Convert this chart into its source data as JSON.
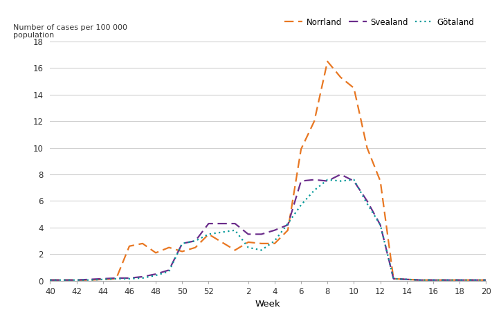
{
  "ylabel": "Number of cases per 100 000\npopulation",
  "xlabel": "Week",
  "ylim": [
    0,
    18
  ],
  "yticks": [
    0,
    2,
    4,
    6,
    8,
    10,
    12,
    14,
    16,
    18
  ],
  "xtick_labels": [
    "40",
    "42",
    "44",
    "46",
    "48",
    "50",
    "52",
    "2",
    "4",
    "6",
    "8",
    "10",
    "12",
    "14",
    "16",
    "18",
    "20"
  ],
  "background_color": "#ffffff",
  "series": [
    {
      "name": "Norrland",
      "color": "#E87722",
      "linestyle": "--",
      "linewidth": 1.6,
      "data": {
        "weeks": [
          40,
          41,
          42,
          43,
          44,
          45,
          46,
          47,
          48,
          49,
          50,
          51,
          52,
          1,
          2,
          3,
          4,
          5,
          6,
          7,
          8,
          9,
          10,
          11,
          12,
          13,
          14,
          15,
          16,
          17,
          18,
          19,
          20
        ],
        "values": [
          0.05,
          0.05,
          0.05,
          0.05,
          0.1,
          0.15,
          2.6,
          2.8,
          2.1,
          2.5,
          2.2,
          2.5,
          3.5,
          2.3,
          2.9,
          2.8,
          2.8,
          3.8,
          9.9,
          12.0,
          16.5,
          15.3,
          14.5,
          10.0,
          7.5,
          0.15,
          0.1,
          0.05,
          0.05,
          0.05,
          0.05,
          0.05,
          0.05
        ]
      }
    },
    {
      "name": "Svealand",
      "color": "#6B2D8B",
      "linestyle": "--",
      "linewidth": 1.6,
      "data": {
        "weeks": [
          40,
          41,
          42,
          43,
          44,
          45,
          46,
          47,
          48,
          49,
          50,
          51,
          52,
          1,
          2,
          3,
          4,
          5,
          6,
          7,
          8,
          9,
          10,
          11,
          12,
          13,
          14,
          15,
          16,
          17,
          18,
          19,
          20
        ],
        "values": [
          0.05,
          0.05,
          0.05,
          0.1,
          0.15,
          0.2,
          0.2,
          0.3,
          0.5,
          0.8,
          2.8,
          3.0,
          4.3,
          4.3,
          3.5,
          3.5,
          3.8,
          4.2,
          7.5,
          7.6,
          7.5,
          8.0,
          7.5,
          6.0,
          4.2,
          0.15,
          0.1,
          0.05,
          0.05,
          0.05,
          0.05,
          0.05,
          0.05
        ]
      }
    },
    {
      "name": "Götaland",
      "color": "#009999",
      "linestyle": ":",
      "linewidth": 1.6,
      "data": {
        "weeks": [
          40,
          41,
          42,
          43,
          44,
          45,
          46,
          47,
          48,
          49,
          50,
          51,
          52,
          1,
          2,
          3,
          4,
          5,
          6,
          7,
          8,
          9,
          10,
          11,
          12,
          13,
          14,
          15,
          16,
          17,
          18,
          19,
          20
        ],
        "values": [
          0.05,
          0.05,
          0.05,
          0.05,
          0.1,
          0.15,
          0.15,
          0.2,
          0.4,
          0.7,
          2.8,
          3.0,
          3.5,
          3.8,
          2.5,
          2.3,
          3.0,
          4.3,
          5.7,
          6.8,
          7.6,
          7.5,
          7.6,
          5.8,
          4.2,
          0.15,
          0.1,
          0.05,
          0.05,
          0.05,
          0.05,
          0.05,
          0.05
        ]
      }
    }
  ]
}
